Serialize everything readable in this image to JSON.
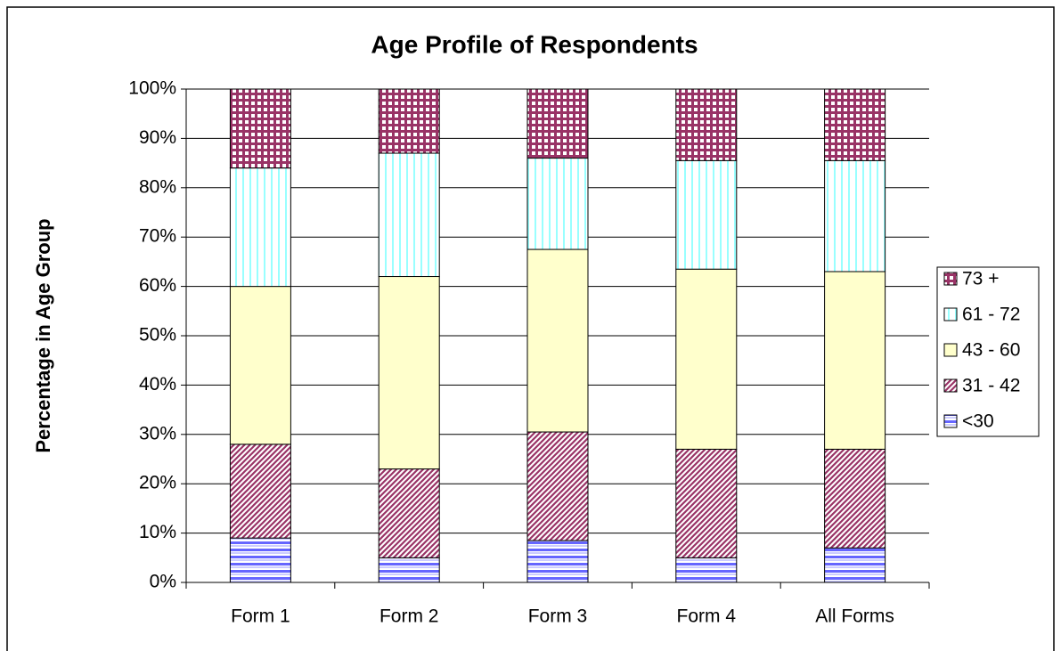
{
  "chart_data": {
    "type": "stacked_bar_100",
    "title": "Age Profile of Respondents",
    "y_label": "Percentage in Age Group",
    "categories": [
      "Form 1",
      "Form 2",
      "Form 3",
      "Form 4",
      "All Forms"
    ],
    "series": [
      {
        "name": "<30",
        "color": "#6666ff",
        "values": [
          9,
          5,
          8.5,
          5,
          7
        ]
      },
      {
        "name": "31 - 42",
        "color": "#993366",
        "values": [
          19,
          18,
          22,
          22,
          20
        ]
      },
      {
        "name": "43 - 60",
        "color": "#ffffcc",
        "values": [
          32,
          39,
          37,
          36.5,
          36
        ]
      },
      {
        "name": "61 - 72",
        "color": "#99ffff",
        "values": [
          24,
          25,
          18.5,
          22,
          22.5
        ]
      },
      {
        "name": "73 +",
        "color": "#993366",
        "values": [
          16,
          13,
          14,
          14.5,
          14.5
        ]
      }
    ],
    "ylim": [
      0,
      100
    ],
    "yticks": [
      {
        "value": 0,
        "label": "0%"
      },
      {
        "value": 10,
        "label": "10%"
      },
      {
        "value": 20,
        "label": "20%"
      },
      {
        "value": 30,
        "label": "30%"
      },
      {
        "value": 40,
        "label": "40%"
      },
      {
        "value": 50,
        "label": "50%"
      },
      {
        "value": 60,
        "label": "60%"
      },
      {
        "value": 70,
        "label": "70%"
      },
      {
        "value": 80,
        "label": "80%"
      },
      {
        "value": 90,
        "label": "90%"
      },
      {
        "value": 100,
        "label": "100%"
      }
    ],
    "grid": true,
    "legend": "right"
  }
}
